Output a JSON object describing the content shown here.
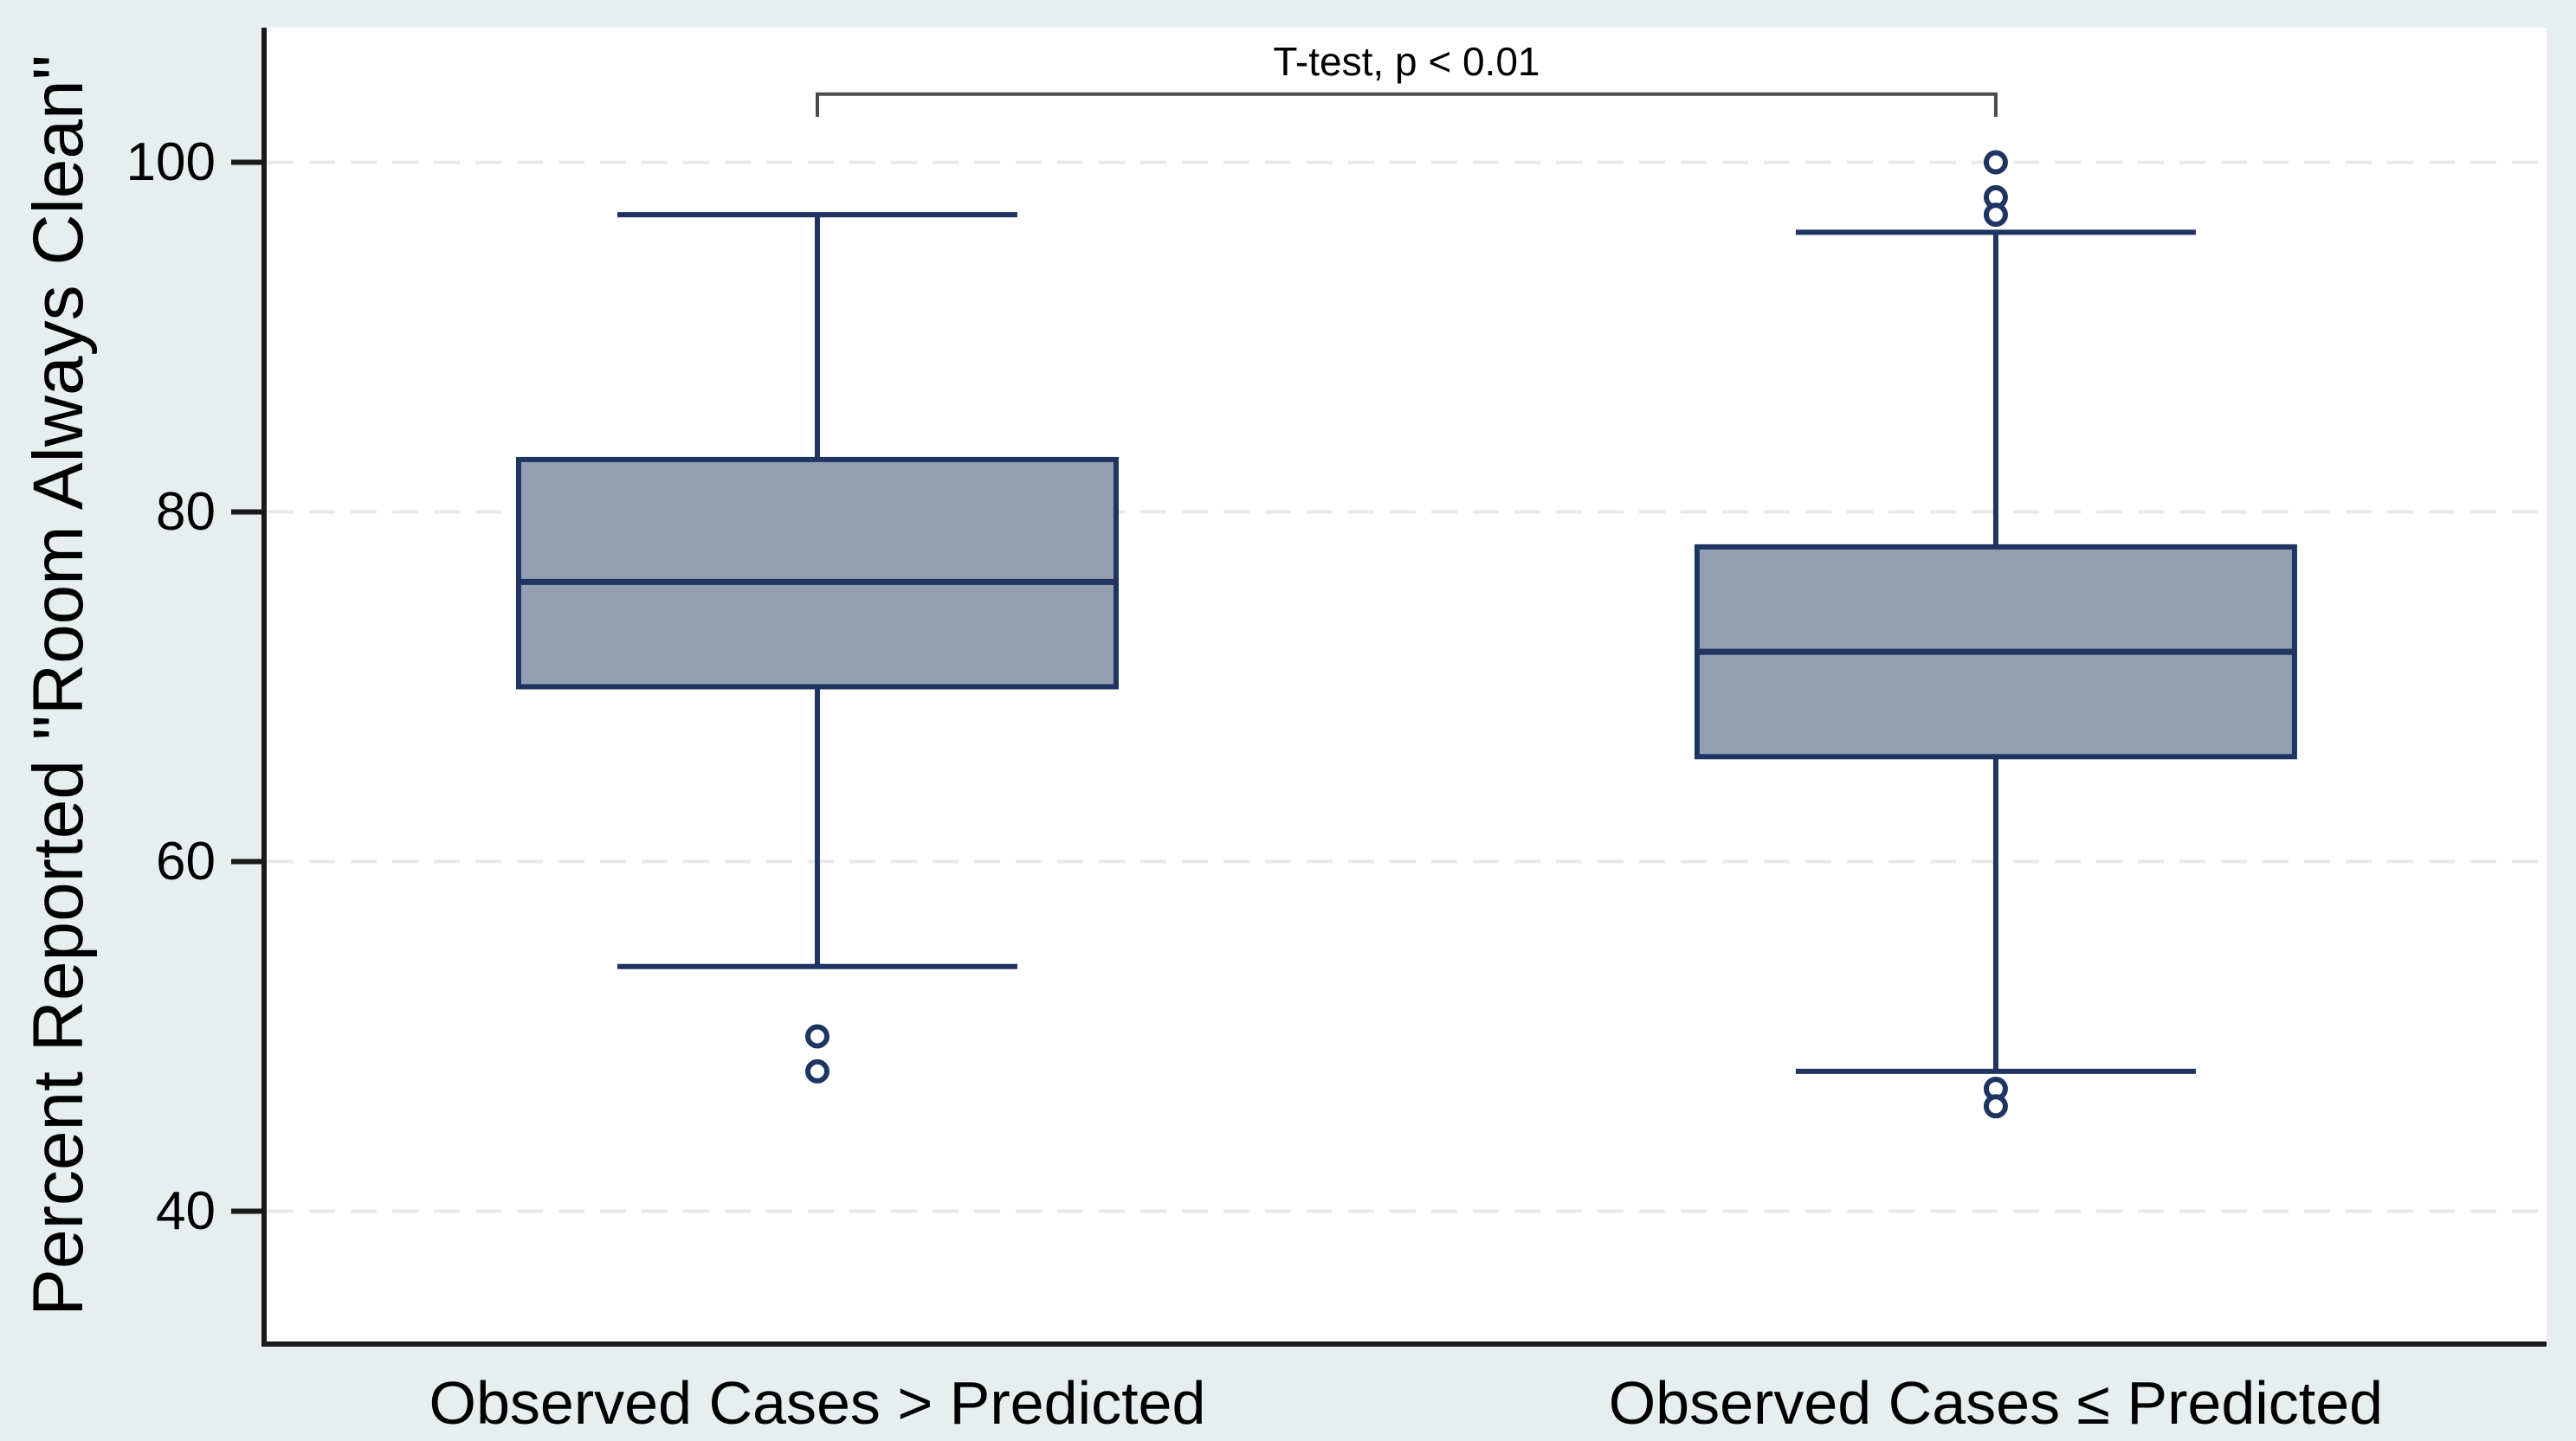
{
  "page": {
    "background_color": "#e6eef0",
    "plot_background_color": "#ffffff"
  },
  "chart_data": {
    "type": "boxplot",
    "title": "",
    "xlabel": "",
    "ylabel": "Percent Reported \"Room Always Clean\"",
    "ylim": [
      32.4,
      107.7
    ],
    "yticks": [
      100,
      80,
      60,
      40
    ],
    "grid": "horizontal-dashed",
    "legend": "none",
    "annotation": {
      "text": "T-test, p < 0.01",
      "bracket_y_value": 103.9,
      "bracket_tick_drop": 1.3
    },
    "colors": {
      "box_fill": "#949eb2",
      "box_stroke": "#1e3461",
      "axis": "#1a1a1a",
      "grid": "#e9e9e9",
      "bracket": "#4a4a4a",
      "text": "#000000"
    },
    "groups": [
      {
        "label": "Observed Cases > Predicted",
        "whisker_low": 54,
        "q1": 70,
        "median": 76,
        "q3": 83,
        "whisker_high": 97,
        "outliers": [
          50,
          48
        ]
      },
      {
        "label": "Observed Cases ≤ Predicted",
        "whisker_low": 48,
        "q1": 66,
        "median": 72,
        "q3": 78,
        "whisker_high": 96,
        "outliers": [
          100,
          98,
          97,
          47,
          46
        ]
      }
    ]
  }
}
